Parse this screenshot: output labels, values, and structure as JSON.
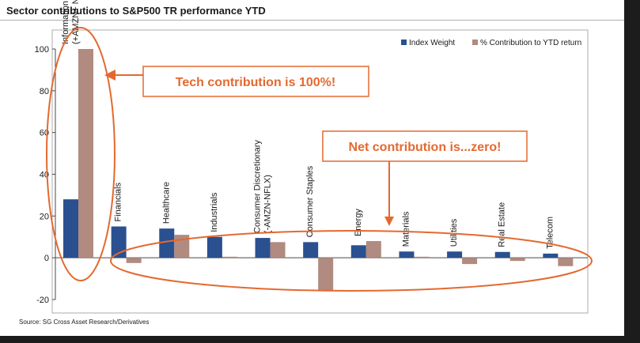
{
  "title": "Sector contributions to S&P500 TR performance YTD",
  "source": "Source: SG Cross Asset Research/Derivatives",
  "callouts": {
    "tech": "Tech contribution  is 100%!",
    "net": "Net contribution  is...zero!"
  },
  "colors": {
    "index_weight": "#2a5090",
    "contribution": "#b18a80",
    "annotation": "#e4692f"
  },
  "chart_data": {
    "type": "bar",
    "legend_position": "top-right",
    "ylim": [
      -20,
      100
    ],
    "yticks": [
      "100",
      "80",
      "60",
      "40",
      "20",
      "0",
      "-20"
    ],
    "grid": false,
    "categories": [
      "Information Technology (+AMZN+ NFLX)",
      "Financials",
      "Healthcare",
      "Industrials",
      "Consumer Discretionary (-AMZN-NFLX)",
      "Consumer Staples",
      "Energy",
      "Materials",
      "Utilities",
      "Real Estate",
      "Telecom"
    ],
    "series": [
      {
        "name": "Index Weight",
        "values": [
          28,
          15,
          14,
          10,
          9.5,
          7.5,
          6,
          3,
          3,
          2.8,
          2
        ]
      },
      {
        "name": "% Contribution to YTD return",
        "values": [
          100,
          -2.5,
          11,
          0.5,
          7.5,
          -16,
          8,
          0.5,
          -3,
          -1.5,
          -4
        ]
      }
    ]
  }
}
